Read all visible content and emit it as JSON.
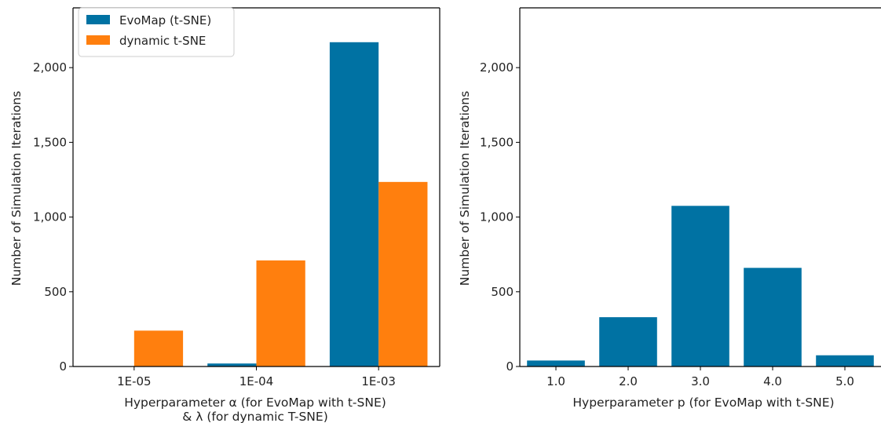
{
  "chart_data": [
    {
      "type": "bar",
      "categories": [
        "1E-05",
        "1E-04",
        "1E-03"
      ],
      "series": [
        {
          "name": "EvoMap (t-SNE)",
          "color": "#0072a3",
          "values": [
            0,
            20,
            2170
          ]
        },
        {
          "name": "dynamic t-SNE",
          "color": "#ff7f0e",
          "values": [
            240,
            710,
            1235
          ]
        }
      ],
      "ylim": [
        0,
        2400
      ],
      "yticks": [
        0,
        500,
        1000,
        1500,
        2000
      ],
      "ytick_labels": [
        "0",
        "500",
        "1,000",
        "1,500",
        "2,000"
      ],
      "xlabel_lines": [
        "Hyperparameter α (for EvoMap with t-SNE)",
        "& λ (for dynamic T-SNE)"
      ],
      "ylabel": "Number of Simulation Iterations",
      "legend_position": "top-left",
      "grid": false
    },
    {
      "type": "bar",
      "categories": [
        "1.0",
        "2.0",
        "3.0",
        "4.0",
        "5.0"
      ],
      "series": [
        {
          "color": "#0072a3",
          "values": [
            40,
            330,
            1075,
            660,
            75
          ]
        }
      ],
      "ylim": [
        0,
        2400
      ],
      "yticks": [
        0,
        500,
        1000,
        1500,
        2000
      ],
      "ytick_labels": [
        "0",
        "500",
        "1,000",
        "1,500",
        "2,000"
      ],
      "xlabel_lines": [
        "Hyperparameter p (for EvoMap with t-SNE)"
      ],
      "ylabel": "Number of Simulation Iterations",
      "grid": false
    }
  ]
}
